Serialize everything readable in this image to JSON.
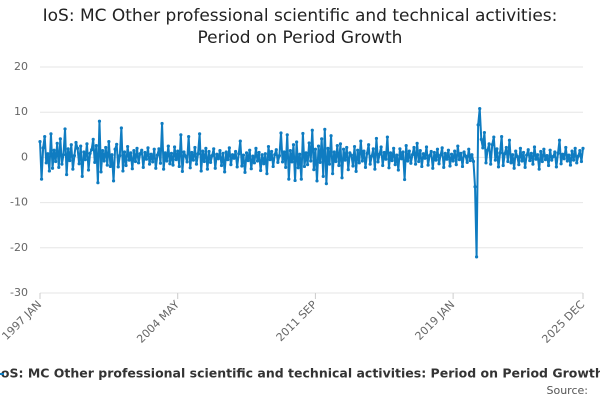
{
  "chart_data": {
    "type": "line",
    "title": "IoS: MC Other professional scientific and technical activities: Period on Period Growth",
    "source": "Source:",
    "categories": [
      "1997 JAN",
      null,
      null,
      null,
      null,
      null,
      null,
      null,
      null,
      null,
      null,
      null,
      null,
      null,
      null,
      null,
      null,
      null,
      null,
      null,
      null,
      null,
      null,
      null,
      null,
      null,
      null,
      null,
      null,
      null,
      null,
      null,
      null,
      null,
      null,
      null,
      null,
      null,
      null,
      null,
      null,
      null,
      null,
      null,
      null,
      null,
      null,
      null,
      null,
      null,
      null,
      null,
      null,
      null,
      null,
      null,
      null,
      null,
      null,
      null,
      null,
      null,
      null,
      null,
      null,
      null,
      null,
      null,
      null,
      null,
      null,
      null,
      null,
      null,
      null,
      null,
      null,
      null,
      null,
      null,
      null,
      null,
      null,
      null,
      null,
      null,
      null,
      null,
      "2004 MAY",
      null,
      null,
      null,
      null,
      null,
      null,
      null,
      null,
      null,
      null,
      null,
      null,
      null,
      null,
      null,
      null,
      null,
      null,
      null,
      null,
      null,
      null,
      null,
      null,
      null,
      null,
      null,
      null,
      null,
      null,
      null,
      null,
      null,
      null,
      null,
      null,
      null,
      null,
      null,
      null,
      null,
      null,
      null,
      null,
      null,
      null,
      null,
      null,
      null,
      null,
      null,
      null,
      null,
      null,
      null,
      null,
      null,
      null,
      null,
      null,
      null,
      null,
      null,
      null,
      null,
      null,
      null,
      null,
      null,
      null,
      null,
      null,
      null,
      null,
      null,
      null,
      null,
      null,
      null,
      null,
      null,
      null,
      null,
      null,
      null,
      null,
      null,
      "2011 SEP",
      null,
      null,
      null,
      null,
      null,
      null,
      null,
      null,
      null,
      null,
      null,
      null,
      null,
      null,
      null,
      null,
      null,
      null,
      null,
      null,
      null,
      null,
      null,
      null,
      null,
      null,
      null,
      null,
      null,
      null,
      null,
      null,
      null,
      null,
      null,
      null,
      null,
      null,
      null,
      null,
      null,
      null,
      null,
      null,
      null,
      null,
      null,
      null,
      null,
      null,
      null,
      null,
      null,
      null,
      null,
      null,
      null,
      null,
      null,
      null,
      null,
      null,
      null,
      null,
      null,
      null,
      null,
      null,
      null,
      null,
      null,
      null,
      null,
      null,
      null,
      null,
      null,
      null,
      null,
      null,
      null,
      null,
      null,
      null,
      null,
      null,
      null,
      "2019 JAN",
      null,
      null,
      null,
      null,
      null,
      null,
      null,
      null,
      null,
      null,
      null,
      null,
      null,
      null,
      null,
      null,
      null,
      null,
      null,
      null,
      null,
      null,
      null,
      null,
      null,
      null,
      null,
      null,
      null,
      null,
      null,
      null,
      null,
      null,
      null,
      null,
      null,
      null,
      null,
      null,
      null,
      null,
      null,
      null,
      null,
      null,
      null,
      null,
      null,
      null,
      null,
      null,
      null,
      null,
      null,
      null,
      null,
      null,
      null,
      null,
      null,
      null,
      null,
      null,
      null,
      null,
      null,
      null,
      null,
      null,
      null,
      null,
      null,
      null,
      null,
      null,
      null,
      null,
      null,
      null,
      null,
      null,
      "2025 DEC"
    ],
    "series": [
      {
        "name": "IoS: MC Other professional scientific and technical activities: Period on Period Growth",
        "color": "#0f7cc1",
        "values": [
          3.5,
          -4.8,
          2.1,
          4.6,
          -1.2,
          0.8,
          -3.0,
          5.2,
          -2.4,
          1.6,
          -0.9,
          3.1,
          -2.2,
          4.1,
          -1.5,
          0.6,
          6.3,
          -3.8,
          1.9,
          -0.7,
          2.8,
          -2.6,
          0.4,
          3.3,
          2.0,
          -1.4,
          2.5,
          -4.2,
          1.2,
          -0.5,
          3.0,
          -2.8,
          0.9,
          1.7,
          4.0,
          -1.1,
          2.6,
          -5.6,
          8.0,
          -3.2,
          1.5,
          -0.8,
          2.2,
          -1.7,
          3.5,
          -2.0,
          0.6,
          -5.2,
          1.8,
          2.9,
          -2.1,
          0.4,
          6.5,
          -3.0,
          1.2,
          -1.8,
          2.4,
          -0.6,
          1.0,
          -2.5,
          1.5,
          -0.9,
          2.0,
          -1.2,
          0.8,
          1.6,
          -2.2,
          1.1,
          -0.4,
          2.1,
          -1.5,
          0.7,
          -1.0,
          1.8,
          -2.4,
          0.5,
          1.9,
          -1.3,
          7.5,
          -2.6,
          1.0,
          -0.8,
          2.5,
          -1.4,
          0.9,
          -1.7,
          2.3,
          -0.5,
          1.4,
          -2.0,
          5.0,
          -3.1,
          1.2,
          0.3,
          -1.0,
          4.6,
          -2.3,
          1.1,
          -0.6,
          2.2,
          -1.5,
          0.8,
          5.2,
          -3.0,
          1.4,
          -0.9,
          2.0,
          -2.6,
          1.3,
          -1.1,
          0.4,
          1.9,
          -2.4,
          0.7,
          -0.3,
          1.5,
          -1.8,
          0.9,
          -3.2,
          1.2,
          -0.5,
          2.1,
          -1.6,
          0.6,
          -0.2,
          1.3,
          -2.1,
          0.8,
          3.6,
          -1.9,
          0.5,
          -3.3,
          1.0,
          -0.7,
          1.6,
          -2.5,
          0.3,
          -1.2,
          2.0,
          -0.8,
          1.1,
          -2.9,
          0.6,
          -1.4,
          0.8,
          -3.6,
          2.4,
          -0.5,
          1.3,
          -2.0,
          0.6,
          1.7,
          -1.1,
          0.4,
          5.4,
          -1.0,
          1.2,
          -2.2,
          5.0,
          -4.8,
          1.5,
          -1.0,
          2.8,
          -5.1,
          3.4,
          -2.3,
          0.7,
          -4.8,
          5.3,
          -2.0,
          1.0,
          -1.6,
          3.2,
          -0.8,
          6.0,
          -2.7,
          1.8,
          -5.2,
          2.5,
          -1.1,
          4.1,
          -4.2,
          6.2,
          -5.8,
          2.0,
          -1.5,
          4.8,
          -3.6,
          1.2,
          -0.9,
          2.6,
          -1.8,
          3.0,
          -4.5,
          1.8,
          -0.6,
          2.2,
          -2.7,
          1.0,
          0.5,
          -1.9,
          2.4,
          -3.1,
          1.6,
          -1.2,
          3.6,
          -0.8,
          1.4,
          -2.2,
          0.9,
          2.8,
          -1.5,
          0.3,
          1.9,
          -2.6,
          4.2,
          -1.0,
          0.7,
          2.3,
          -1.8,
          1.1,
          -0.4,
          4.5,
          -2.3,
          1.0,
          -0.7,
          2.0,
          -1.6,
          0.5,
          -2.8,
          1.9,
          -0.3,
          1.2,
          -4.9,
          2.6,
          -0.8,
          1.4,
          -1.3,
          0.6,
          2.2,
          -1.5,
          3.1,
          -0.9,
          1.5,
          -2.0,
          0.8,
          -0.2,
          2.3,
          -1.7,
          0.4,
          1.3,
          -2.4,
          1.1,
          -0.6,
          1.8,
          -1.4,
          0.5,
          2.1,
          -2.2,
          0.9,
          -0.4,
          1.6,
          -1.9,
          0.7,
          -0.8,
          1.4,
          -1.6,
          2.5,
          -0.5,
          0.9,
          -2.0,
          1.2,
          0.3,
          -1.1,
          1.8,
          -0.7,
          0.6,
          -0.9,
          -6.5,
          -22.0,
          7.2,
          10.8,
          4.0,
          2.1,
          5.5,
          -1.2,
          1.6,
          3.0,
          -1.5,
          2.8,
          4.5,
          -0.6,
          1.9,
          -2.1,
          1.0,
          4.6,
          -1.8,
          0.8,
          2.2,
          -0.9,
          3.8,
          -1.2,
          0.6,
          -2.4,
          1.4,
          0.2,
          -1.6,
          2.0,
          -0.8,
          1.1,
          -2.2,
          0.5,
          1.7,
          -0.7,
          0.9,
          -1.5,
          2.3,
          -0.4,
          0.6,
          -2.6,
          1.3,
          -0.9,
          1.8,
          -0.5,
          0.4,
          -1.8,
          1.6,
          -0.6,
          0.2,
          1.2,
          -2.1,
          0.9,
          3.8,
          -1.4,
          0.7,
          -0.3,
          2.2,
          -0.8,
          0.5,
          -1.7,
          1.4,
          -0.6,
          2.0,
          -1.2,
          0.3,
          1.5,
          -0.9,
          2.0
        ]
      }
    ],
    "ylim": [
      -30,
      20
    ],
    "yticks": [
      -30,
      -20,
      -10,
      0,
      10,
      20
    ],
    "grid": true
  }
}
